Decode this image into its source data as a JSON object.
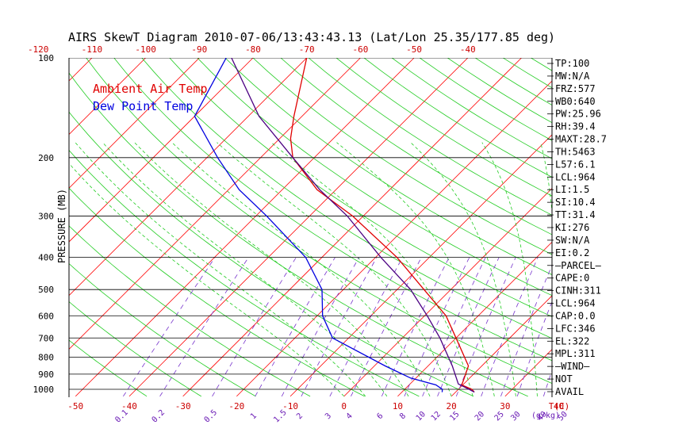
{
  "chart_data": {
    "type": "line",
    "title": "AIRS SkewT Diagram 2010-07-06/13:43:43.13 (Lat/Lon 25.35/177.85 deg)",
    "ylabel": "PRESSURE (MB)",
    "xlabel_bottom_unit": "T(C)",
    "mixing_ratio_unit": "g/kg",
    "y_scale": "log",
    "ylim": [
      1050,
      100
    ],
    "pressure_ticks": [
      "100",
      "200",
      "300",
      "400",
      "500",
      "600",
      "700",
      "800",
      "900",
      "1000"
    ],
    "top_temp_ticks": [
      "-120",
      "-110",
      "-100",
      "-90",
      "-80",
      "-70",
      "-60",
      "-50",
      "-40"
    ],
    "bottom_temp_ticks": [
      "-50",
      "-40",
      "-30",
      "-20",
      "-10",
      "0",
      "10",
      "20",
      "30",
      "40"
    ],
    "mixing_ratio_labels": [
      "0.1",
      "0.2",
      "0.5",
      "1",
      "1.5",
      "2",
      "3",
      "4",
      "6",
      "8",
      "10",
      "12",
      "15",
      "20",
      "25",
      "30",
      "40",
      "50"
    ],
    "legend": [
      {
        "name": "Ambient Air Temp",
        "color": "#e00000"
      },
      {
        "name": "Dew Point Temp",
        "color": "#0000e0"
      }
    ],
    "series": [
      {
        "name": "Ambient Air Temp",
        "color": "#e00000",
        "points": [
          {
            "p": 1020,
            "t": 23.5
          },
          {
            "p": 1000,
            "t": 22.5
          },
          {
            "p": 970,
            "t": 19.8
          },
          {
            "p": 925,
            "t": 19.0
          },
          {
            "p": 850,
            "t": 17.5
          },
          {
            "p": 700,
            "t": 10.0
          },
          {
            "p": 600,
            "t": 4.0
          },
          {
            "p": 500,
            "t": -5.0
          },
          {
            "p": 400,
            "t": -16.0
          },
          {
            "p": 300,
            "t": -32.0
          },
          {
            "p": 250,
            "t": -43.5
          },
          {
            "p": 200,
            "t": -54.0
          },
          {
            "p": 175,
            "t": -58.0
          },
          {
            "p": 150,
            "t": -61.5
          },
          {
            "p": 100,
            "t": -70.0
          }
        ]
      },
      {
        "name": "Dew Point Temp",
        "color": "#0000e0",
        "points": [
          {
            "p": 1020,
            "t": 17.5
          },
          {
            "p": 1000,
            "t": 17.0
          },
          {
            "p": 970,
            "t": 15.0
          },
          {
            "p": 925,
            "t": 9.0
          },
          {
            "p": 850,
            "t": 2.0
          },
          {
            "p": 700,
            "t": -13.0
          },
          {
            "p": 600,
            "t": -19.0
          },
          {
            "p": 500,
            "t": -24.0
          },
          {
            "p": 400,
            "t": -33.0
          },
          {
            "p": 300,
            "t": -48.0
          },
          {
            "p": 250,
            "t": -58.0
          },
          {
            "p": 200,
            "t": -68.0
          },
          {
            "p": 150,
            "t": -80.0
          },
          {
            "p": 100,
            "t": -85.0
          }
        ]
      },
      {
        "name": "Parcel",
        "color": "#4b0082",
        "points": [
          {
            "p": 1020,
            "t": 23.5
          },
          {
            "p": 1000,
            "t": 22.0
          },
          {
            "p": 964,
            "t": 19.0
          },
          {
            "p": 850,
            "t": 14.5
          },
          {
            "p": 700,
            "t": 7.0
          },
          {
            "p": 600,
            "t": 0.5
          },
          {
            "p": 500,
            "t": -7.5
          },
          {
            "p": 400,
            "t": -19.0
          },
          {
            "p": 300,
            "t": -33.0
          },
          {
            "p": 250,
            "t": -43.0
          },
          {
            "p": 200,
            "t": -54.0
          },
          {
            "p": 150,
            "t": -68.0
          },
          {
            "p": 100,
            "t": -84.0
          }
        ]
      }
    ],
    "indices": [
      "TP:100",
      "MW:N/A",
      "FRZ:577",
      "WB0:640",
      "PW:25.96",
      "RH:39.4",
      "MAXT:28.7",
      "TH:5463",
      "L57:6.1",
      "LCL:964",
      "LI:1.5",
      "SI:10.4",
      "TT:31.4",
      "KI:276",
      "SW:N/A",
      "EI:0.2",
      "—PARCEL—",
      "CAPE:0",
      "CINH:311",
      "LCL:964",
      "CAP:0.0",
      "LFC:346",
      "EL:322",
      "MPL:311",
      "—WIND—",
      "NOT",
      "AVAIL"
    ]
  }
}
